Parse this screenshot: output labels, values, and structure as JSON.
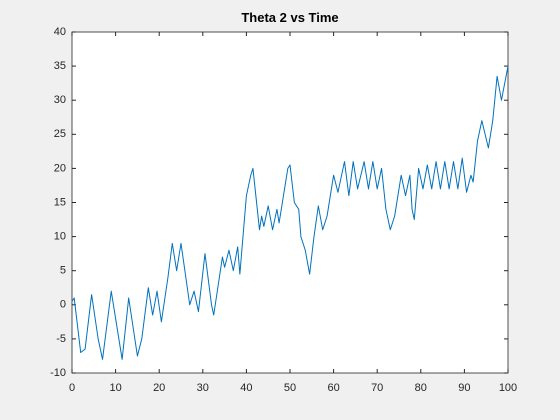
{
  "chart_data": {
    "type": "line",
    "title": "Theta 2 vs Time",
    "x": [
      0,
      0.5,
      2,
      3,
      4.5,
      6,
      7,
      9,
      11.5,
      13,
      15,
      16,
      17.5,
      18.5,
      19.5,
      20.5,
      22,
      23,
      24,
      25,
      27,
      28,
      29,
      30.5,
      32,
      32.5,
      34.5,
      35,
      36,
      37,
      38,
      38.5,
      40,
      41,
      41.5,
      43,
      43.5,
      44,
      45,
      46,
      47,
      47.5,
      48.5,
      49.5,
      50,
      51,
      52,
      52.5,
      53.5,
      54.5,
      55.5,
      56.5,
      57.5,
      58.5,
      60,
      61,
      62.5,
      63.5,
      64.5,
      65.5,
      67,
      68,
      69,
      70,
      71,
      72,
      73,
      74,
      75.5,
      76.5,
      77.5,
      78,
      78.5,
      79.5,
      80.5,
      81.5,
      82.5,
      83.5,
      84.5,
      85.5,
      86.5,
      87.5,
      88.5,
      89.5,
      90.5,
      91.5,
      92,
      93,
      94,
      95.5,
      96.5,
      97.5,
      98.5,
      100
    ],
    "series": [
      {
        "name": "Theta 2",
        "color": "#0072bd",
        "values": [
          0.5,
          1,
          -7,
          -6.5,
          1.5,
          -5,
          -8,
          2,
          -8,
          1,
          -7.5,
          -5,
          2.5,
          -1.5,
          2,
          -2.5,
          4,
          9,
          5,
          9,
          0,
          2,
          -1,
          7.5,
          0,
          -1.5,
          7,
          5.5,
          8,
          5,
          8.5,
          4.5,
          16,
          19,
          20,
          11,
          13,
          11.5,
          14.5,
          11,
          14,
          12,
          16,
          20,
          20.5,
          15,
          14,
          10,
          8,
          4.5,
          10,
          14.5,
          11,
          13,
          19,
          16.5,
          21,
          16,
          21,
          17,
          21,
          17,
          21,
          17,
          20,
          14,
          11,
          13,
          19,
          16,
          19,
          14,
          12.5,
          20,
          17,
          20.5,
          17,
          21,
          17,
          21,
          17,
          21,
          17,
          21.5,
          16.5,
          19,
          18,
          24,
          27,
          23,
          27,
          33.5,
          30,
          35
        ]
      }
    ],
    "xlim": [
      0,
      100
    ],
    "xticks": [
      0,
      10,
      20,
      30,
      40,
      50,
      60,
      70,
      80,
      90,
      100
    ],
    "ylim": [
      -10,
      40
    ],
    "yticks": [
      -10,
      -5,
      0,
      5,
      10,
      15,
      20,
      25,
      30,
      35,
      40
    ]
  }
}
